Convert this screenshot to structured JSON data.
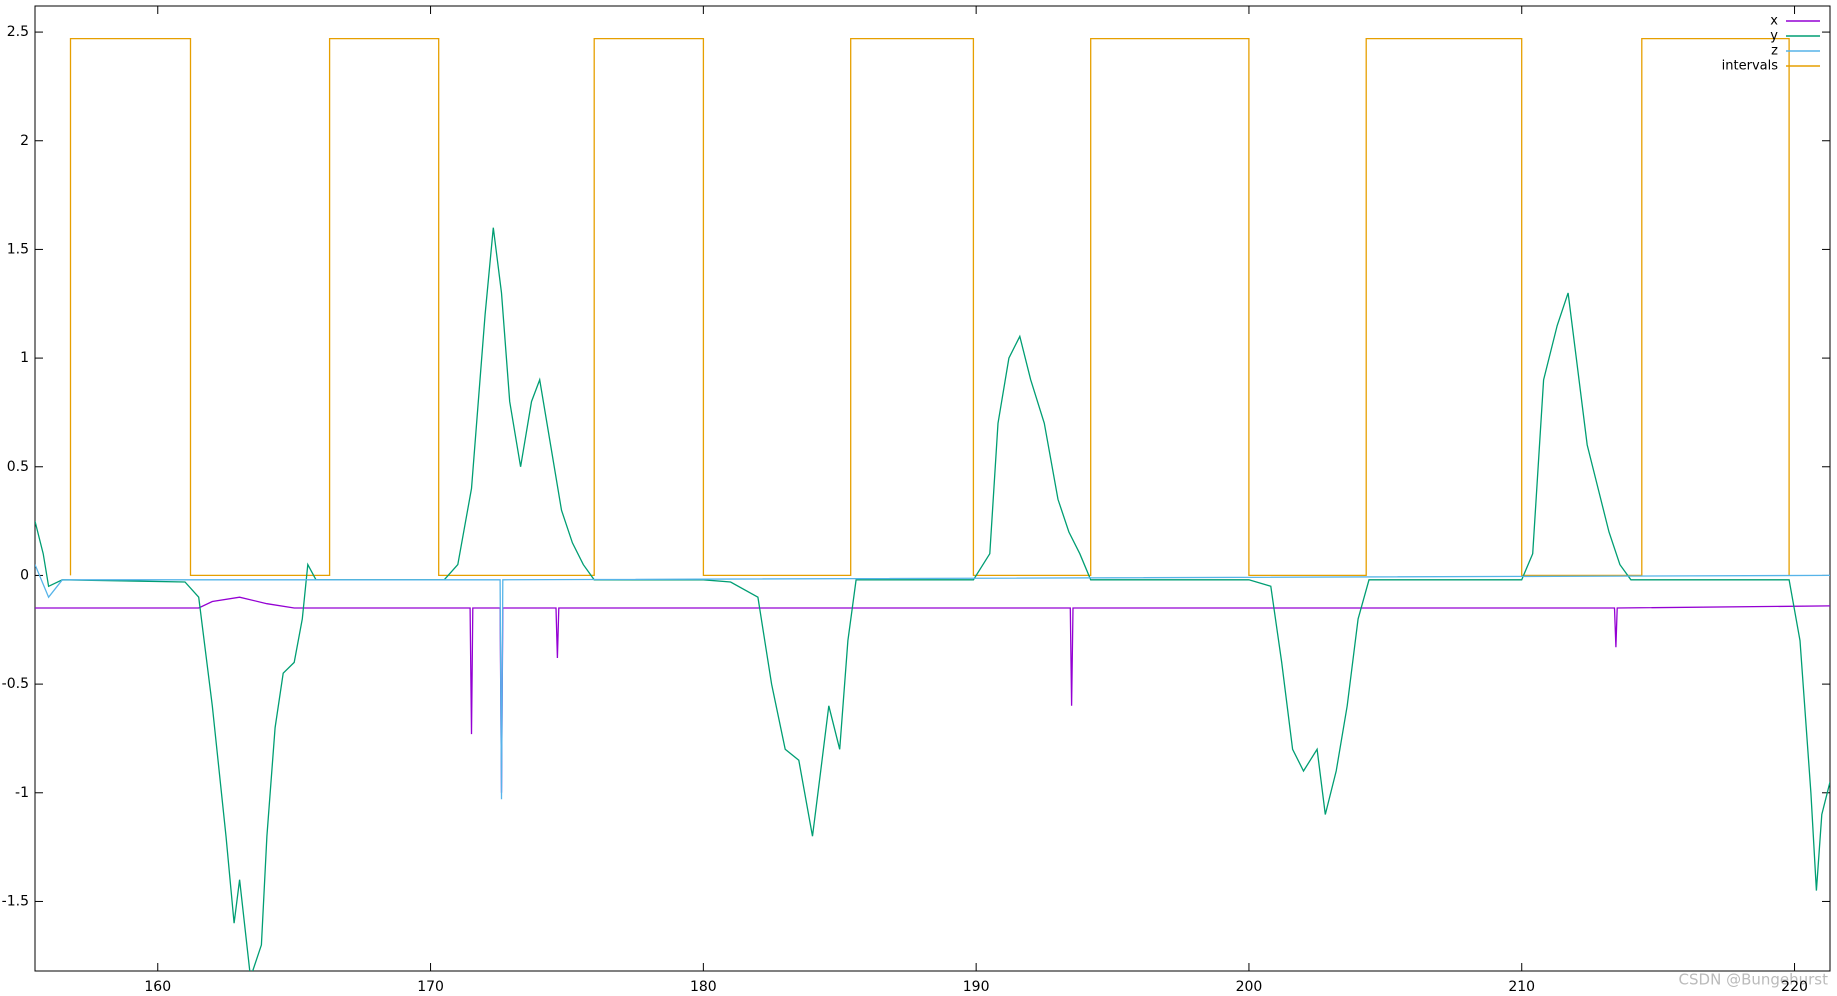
{
  "chart_data": {
    "type": "line",
    "xlim": [
      155.5,
      221.3
    ],
    "ylim": [
      -1.82,
      2.62
    ],
    "xticks": [
      160,
      170,
      180,
      190,
      200,
      210,
      220
    ],
    "yticks": [
      -1.5,
      -1,
      -0.5,
      0,
      0.5,
      1,
      1.5,
      2,
      2.5
    ],
    "legend": "upper right",
    "watermark": "CSDN @Bungehurst",
    "series": [
      {
        "name": "x",
        "color": "#9400d3",
        "x": [
          155.5,
          161.5,
          162,
          163,
          164,
          165,
          171,
          171.45,
          171.5,
          171.55,
          172.55,
          172.6,
          172.65,
          174.6,
          174.65,
          174.7,
          193.45,
          193.5,
          193.55,
          213.4,
          213.45,
          213.5,
          221.3
        ],
        "values": [
          -0.15,
          -0.15,
          -0.12,
          -0.1,
          -0.13,
          -0.15,
          -0.15,
          -0.15,
          -0.73,
          -0.15,
          -0.15,
          -1.0,
          -0.15,
          -0.15,
          -0.38,
          -0.15,
          -0.15,
          -0.6,
          -0.15,
          -0.15,
          -0.33,
          -0.15,
          -0.14
        ]
      },
      {
        "name": "y",
        "color": "#009e73",
        "x": [
          155.5,
          155.8,
          156,
          156.5,
          161,
          161.5,
          162,
          162.5,
          162.8,
          163,
          163.4,
          163.8,
          164,
          164.3,
          164.6,
          165,
          165.3,
          165.5,
          165.8,
          170.5,
          171,
          171.5,
          172,
          172.3,
          172.6,
          172.9,
          173.3,
          173.7,
          174,
          174.4,
          174.8,
          175.2,
          175.6,
          176,
          180,
          181,
          182,
          182.5,
          183,
          183.5,
          184,
          184.3,
          184.6,
          185,
          185.3,
          185.6,
          189.9,
          190.5,
          190.8,
          191.2,
          191.6,
          192,
          192.5,
          193,
          193.4,
          193.8,
          194.2,
          200,
          200.8,
          201.2,
          201.6,
          202,
          202.5,
          202.8,
          203.2,
          203.6,
          204,
          204.4,
          210,
          210.4,
          210.8,
          211.3,
          211.7,
          212,
          212.4,
          212.8,
          213.2,
          213.6,
          214,
          219.8,
          220.2,
          220.6,
          220.8,
          221,
          221.3
        ],
        "values": [
          0.25,
          0.1,
          -0.05,
          -0.02,
          -0.03,
          -0.1,
          -0.6,
          -1.2,
          -1.6,
          -1.4,
          -1.85,
          -1.7,
          -1.2,
          -0.7,
          -0.45,
          -0.4,
          -0.2,
          0.05,
          -0.02,
          -0.02,
          0.05,
          0.4,
          1.2,
          1.6,
          1.3,
          0.8,
          0.5,
          0.8,
          0.9,
          0.6,
          0.3,
          0.15,
          0.05,
          -0.02,
          -0.02,
          -0.03,
          -0.1,
          -0.5,
          -0.8,
          -0.85,
          -1.2,
          -0.9,
          -0.6,
          -0.8,
          -0.3,
          -0.02,
          -0.02,
          0.1,
          0.7,
          1.0,
          1.1,
          0.9,
          0.7,
          0.35,
          0.2,
          0.1,
          -0.02,
          -0.02,
          -0.05,
          -0.4,
          -0.8,
          -0.9,
          -0.8,
          -1.1,
          -0.9,
          -0.6,
          -0.2,
          -0.02,
          -0.02,
          0.1,
          0.9,
          1.15,
          1.3,
          1.0,
          0.6,
          0.4,
          0.2,
          0.05,
          -0.02,
          -0.02,
          -0.3,
          -1.0,
          -1.45,
          -1.1,
          -0.95
        ]
      },
      {
        "name": "z",
        "color": "#56b4e9",
        "x": [
          155.5,
          156,
          156.5,
          172.55,
          172.6,
          172.65,
          221.3
        ],
        "values": [
          0.05,
          -0.1,
          -0.02,
          -0.02,
          -1.03,
          -0.02,
          0
        ]
      },
      {
        "name": "intervals",
        "color": "#e69f00",
        "x": [
          156.8,
          156.8,
          161.2,
          161.2,
          166.3,
          166.3,
          170.3,
          170.3,
          176,
          176,
          180,
          180,
          185.4,
          185.4,
          189.9,
          189.9,
          194.2,
          194.2,
          200,
          200,
          204.3,
          204.3,
          210,
          210,
          214.4,
          214.4,
          219.8,
          219.8
        ],
        "values": [
          0,
          2.47,
          2.47,
          0,
          0,
          2.47,
          2.47,
          0,
          0,
          2.47,
          2.47,
          0,
          0,
          2.47,
          2.47,
          0,
          0,
          2.47,
          2.47,
          0,
          0,
          2.47,
          2.47,
          0,
          0,
          2.47,
          2.47,
          0
        ]
      }
    ]
  }
}
